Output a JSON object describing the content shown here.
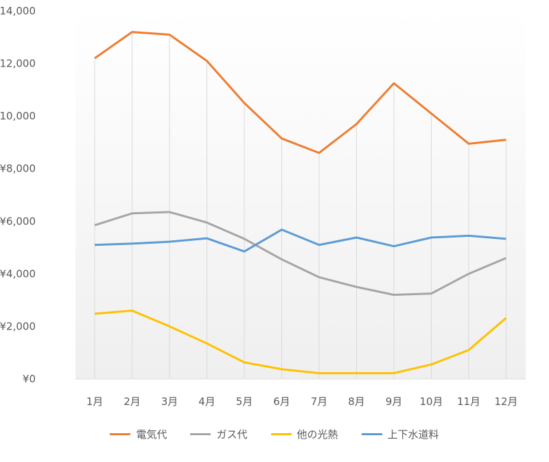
{
  "chart_data": {
    "type": "line",
    "categories": [
      "1月",
      "2月",
      "3月",
      "4月",
      "5月",
      "6月",
      "7月",
      "8月",
      "9月",
      "10月",
      "11月",
      "12月"
    ],
    "ylim": [
      0,
      14000
    ],
    "yticks": [
      "¥0",
      "¥2,000",
      "¥4,000",
      "¥6,000",
      "¥8,000",
      "¥10,000",
      "¥12,000",
      "¥14,000"
    ],
    "ytick_values": [
      0,
      2000,
      4000,
      6000,
      8000,
      10000,
      12000,
      14000
    ],
    "grid": false,
    "drop_lines": true,
    "legend_position": "bottom",
    "series": [
      {
        "name": "電気代",
        "color": "#ED7D31",
        "values": [
          12200,
          13200,
          13100,
          12100,
          10500,
          9150,
          8600,
          9700,
          11250,
          10100,
          8950,
          9100
        ]
      },
      {
        "name": "ガス代",
        "color": "#A5A5A5",
        "values": [
          5850,
          6300,
          6350,
          5950,
          5330,
          4550,
          3870,
          3500,
          3200,
          3250,
          4000,
          4600
        ]
      },
      {
        "name": "他の光熱",
        "color": "#FFC000",
        "values": [
          2480,
          2600,
          2000,
          1350,
          630,
          370,
          220,
          220,
          220,
          550,
          1100,
          2320
        ]
      },
      {
        "name": "上下水道料",
        "color": "#5B9BD5",
        "values": [
          5100,
          5150,
          5220,
          5350,
          4850,
          5680,
          5100,
          5380,
          5050,
          5380,
          5450,
          5330
        ]
      }
    ]
  }
}
